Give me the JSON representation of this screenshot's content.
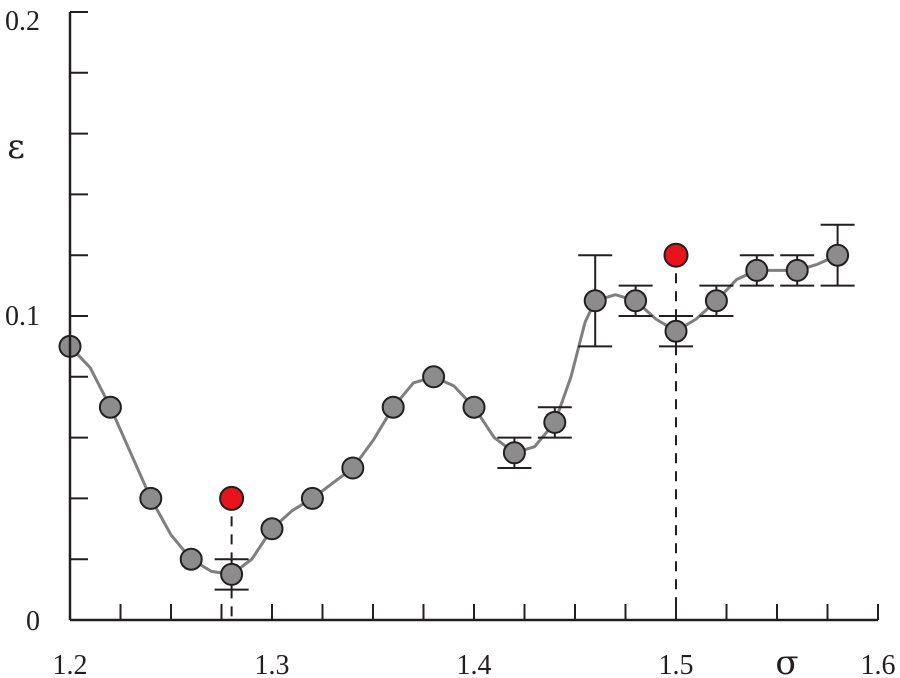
{
  "chart_data": {
    "type": "scatter",
    "xlabel": "σ",
    "ylabel": "ε",
    "xlim": [
      1.2,
      1.6
    ],
    "ylim": [
      0,
      0.2
    ],
    "x_ticks": [
      {
        "value": 1.2,
        "label": "1.2"
      },
      {
        "value": 1.3,
        "label": "1.3"
      },
      {
        "value": 1.4,
        "label": "1.4"
      },
      {
        "value": 1.5,
        "label": "1.5"
      },
      {
        "value": 1.6,
        "label": "1.6"
      }
    ],
    "y_ticks": [
      {
        "value": 0,
        "label": "0"
      },
      {
        "value": 0.1,
        "label": "0.1"
      },
      {
        "value": 0.2,
        "label": "0.2"
      }
    ],
    "x_minor_step": 0.025,
    "y_minor_step": 0.02,
    "grid": false,
    "colors": {
      "axis": "#231f20",
      "point_fill": "#8c8c8c",
      "point_edge": "#231f20",
      "curve": "#7f7f7f",
      "highlight_fill": "#e8141c"
    },
    "series": [
      {
        "points": [
          {
            "x": 1.2,
            "y": 0.09
          },
          {
            "x": 1.22,
            "y": 0.07
          },
          {
            "x": 1.24,
            "y": 0.04
          },
          {
            "x": 1.26,
            "y": 0.02
          },
          {
            "x": 1.28,
            "y": 0.015,
            "err": 0.005
          },
          {
            "x": 1.3,
            "y": 0.03
          },
          {
            "x": 1.32,
            "y": 0.04
          },
          {
            "x": 1.34,
            "y": 0.05
          },
          {
            "x": 1.36,
            "y": 0.07
          },
          {
            "x": 1.38,
            "y": 0.08
          },
          {
            "x": 1.4,
            "y": 0.07
          },
          {
            "x": 1.42,
            "y": 0.055,
            "err": 0.005
          },
          {
            "x": 1.44,
            "y": 0.065,
            "err": 0.005
          },
          {
            "x": 1.46,
            "y": 0.105,
            "err": 0.015
          },
          {
            "x": 1.48,
            "y": 0.105,
            "err": 0.005
          },
          {
            "x": 1.5,
            "y": 0.095,
            "err": 0.005
          },
          {
            "x": 1.52,
            "y": 0.105,
            "err": 0.005
          },
          {
            "x": 1.54,
            "y": 0.115,
            "err": 0.005
          },
          {
            "x": 1.56,
            "y": 0.115,
            "err": 0.005
          },
          {
            "x": 1.58,
            "y": 0.12,
            "err": 0.01
          }
        ]
      }
    ],
    "highlights": [
      {
        "x": 1.28,
        "y": 0.04
      },
      {
        "x": 1.5,
        "y": 0.12
      }
    ],
    "curve": [
      [
        1.2,
        0.09
      ],
      [
        1.21,
        0.083
      ],
      [
        1.22,
        0.07
      ],
      [
        1.23,
        0.055
      ],
      [
        1.24,
        0.04
      ],
      [
        1.25,
        0.028
      ],
      [
        1.26,
        0.02
      ],
      [
        1.27,
        0.016
      ],
      [
        1.28,
        0.015
      ],
      [
        1.29,
        0.02
      ],
      [
        1.3,
        0.03
      ],
      [
        1.31,
        0.036
      ],
      [
        1.32,
        0.04
      ],
      [
        1.33,
        0.045
      ],
      [
        1.34,
        0.05
      ],
      [
        1.35,
        0.059
      ],
      [
        1.36,
        0.07
      ],
      [
        1.37,
        0.078
      ],
      [
        1.38,
        0.08
      ],
      [
        1.39,
        0.077
      ],
      [
        1.4,
        0.07
      ],
      [
        1.41,
        0.06
      ],
      [
        1.42,
        0.055
      ],
      [
        1.43,
        0.057
      ],
      [
        1.44,
        0.065
      ],
      [
        1.448,
        0.08
      ],
      [
        1.455,
        0.098
      ],
      [
        1.46,
        0.105
      ],
      [
        1.47,
        0.107
      ],
      [
        1.48,
        0.105
      ],
      [
        1.49,
        0.099
      ],
      [
        1.5,
        0.095
      ],
      [
        1.51,
        0.099
      ],
      [
        1.52,
        0.105
      ],
      [
        1.53,
        0.112
      ],
      [
        1.54,
        0.115
      ],
      [
        1.55,
        0.115
      ],
      [
        1.56,
        0.115
      ],
      [
        1.57,
        0.117
      ],
      [
        1.58,
        0.12
      ]
    ]
  }
}
